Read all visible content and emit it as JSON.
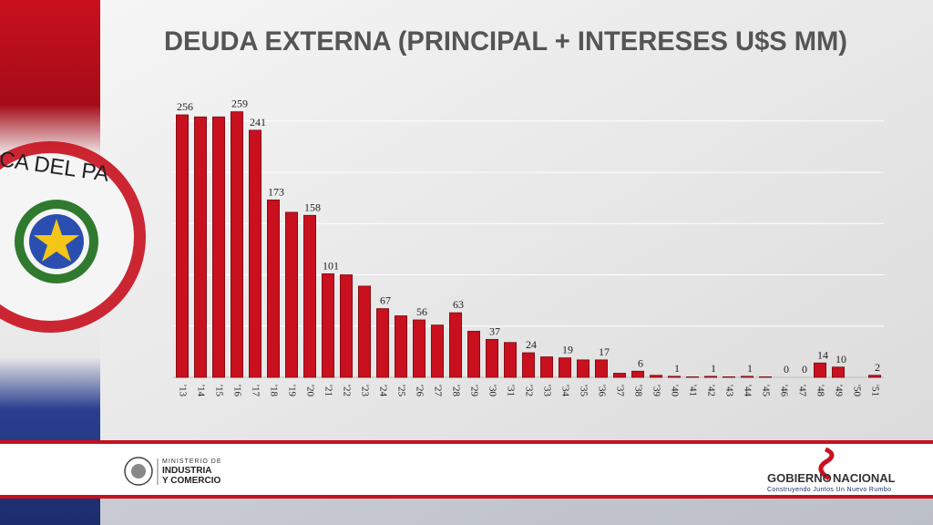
{
  "chart_data": {
    "type": "bar",
    "title": "DEUDA EXTERNA (PRINCIPAL + INTERESES U$S MM)",
    "categories": [
      "'13",
      "'14",
      "'15",
      "'16",
      "'17",
      "'18",
      "'19",
      "'20",
      "'21",
      "'22",
      "'23",
      "'24",
      "'25",
      "'26",
      "'27",
      "'28",
      "'29",
      "'30",
      "'31",
      "'32",
      "'33",
      "'34",
      "'35",
      "'36",
      "'37",
      "'38",
      "'39",
      "'40",
      "'41",
      "'42",
      "'43",
      "'44",
      "'45",
      "'46",
      "'47",
      "'48",
      "'49",
      "'50",
      "'51"
    ],
    "values": [
      256,
      254,
      254,
      259,
      241,
      173,
      161,
      158,
      101,
      100,
      89,
      67,
      60,
      56,
      51,
      63,
      45,
      37,
      34,
      24,
      20,
      19,
      17,
      17,
      4,
      6,
      2,
      1,
      0.5,
      1,
      0.5,
      1,
      0.5,
      0,
      0,
      14,
      10,
      0,
      2
    ],
    "value_labels": [
      "256",
      null,
      null,
      "259",
      "241",
      "173",
      null,
      "158",
      "101",
      null,
      null,
      "67",
      null,
      "56",
      null,
      "63",
      null,
      "37",
      null,
      "24",
      null,
      "19",
      null,
      "17",
      null,
      "6",
      null,
      "1",
      null,
      "1",
      null,
      "1",
      null,
      "0",
      "0",
      "14",
      "10",
      null,
      "2"
    ],
    "color": "#c8101e",
    "ylim": [
      0,
      300
    ],
    "gridlines": [
      50,
      100,
      150,
      200,
      250
    ],
    "grid": true
  },
  "flag_text": "ICA DEL PA",
  "footer": {
    "ministry": [
      "MINISTERIO DE",
      "INDUSTRIA",
      "Y COMERCIO"
    ],
    "government": [
      "GOBIERNO",
      "NACIONAL"
    ],
    "slogan": "Construyendo Juntos Un Nuevo Rumbo"
  }
}
